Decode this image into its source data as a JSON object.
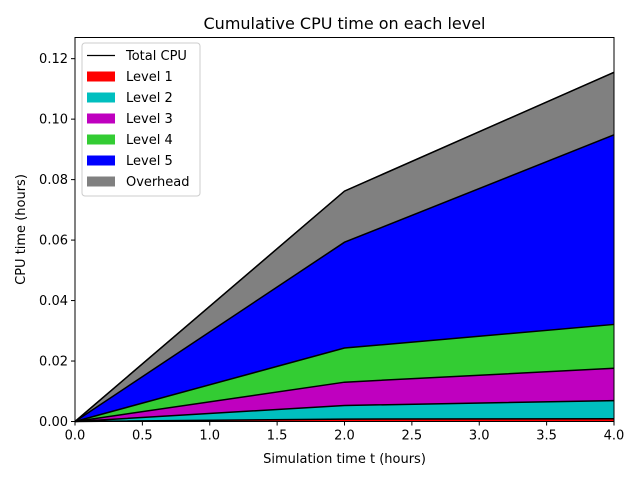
{
  "chart_data": {
    "type": "area",
    "title": "Cumulative CPU time on each level",
    "xlabel": "Simulation time t (hours)",
    "ylabel": "CPU time (hours)",
    "x": [
      0,
      2,
      4
    ],
    "xlim": [
      0,
      4
    ],
    "ylim": [
      0,
      0.127
    ],
    "xticks": [
      "0.0",
      "0.5",
      "1.0",
      "1.5",
      "2.0",
      "2.5",
      "3.0",
      "3.5",
      "4.0"
    ],
    "yticks": [
      "0.00",
      "0.02",
      "0.04",
      "0.06",
      "0.08",
      "0.10",
      "0.12"
    ],
    "stacked": true,
    "grid": false,
    "legend_position": "top-left",
    "total": {
      "name": "Total CPU",
      "values": [
        0,
        0.0762,
        0.1155
      ],
      "color": "#000000"
    },
    "series": [
      {
        "name": "Level 1",
        "values": [
          0,
          0.0008,
          0.0009
        ],
        "color": "#ff0000"
      },
      {
        "name": "Level 2",
        "values": [
          0,
          0.0045,
          0.006
        ],
        "color": "#00bfbf"
      },
      {
        "name": "Level 3",
        "values": [
          0,
          0.0077,
          0.0107
        ],
        "color": "#bf00bf"
      },
      {
        "name": "Level 4",
        "values": [
          0,
          0.0113,
          0.0145
        ],
        "color": "#33cc33"
      },
      {
        "name": "Level 5",
        "values": [
          0,
          0.035,
          0.0627
        ],
        "color": "#0000ff"
      },
      {
        "name": "Overhead",
        "values": [
          0,
          0.0169,
          0.0207
        ],
        "color": "#808080"
      }
    ]
  }
}
